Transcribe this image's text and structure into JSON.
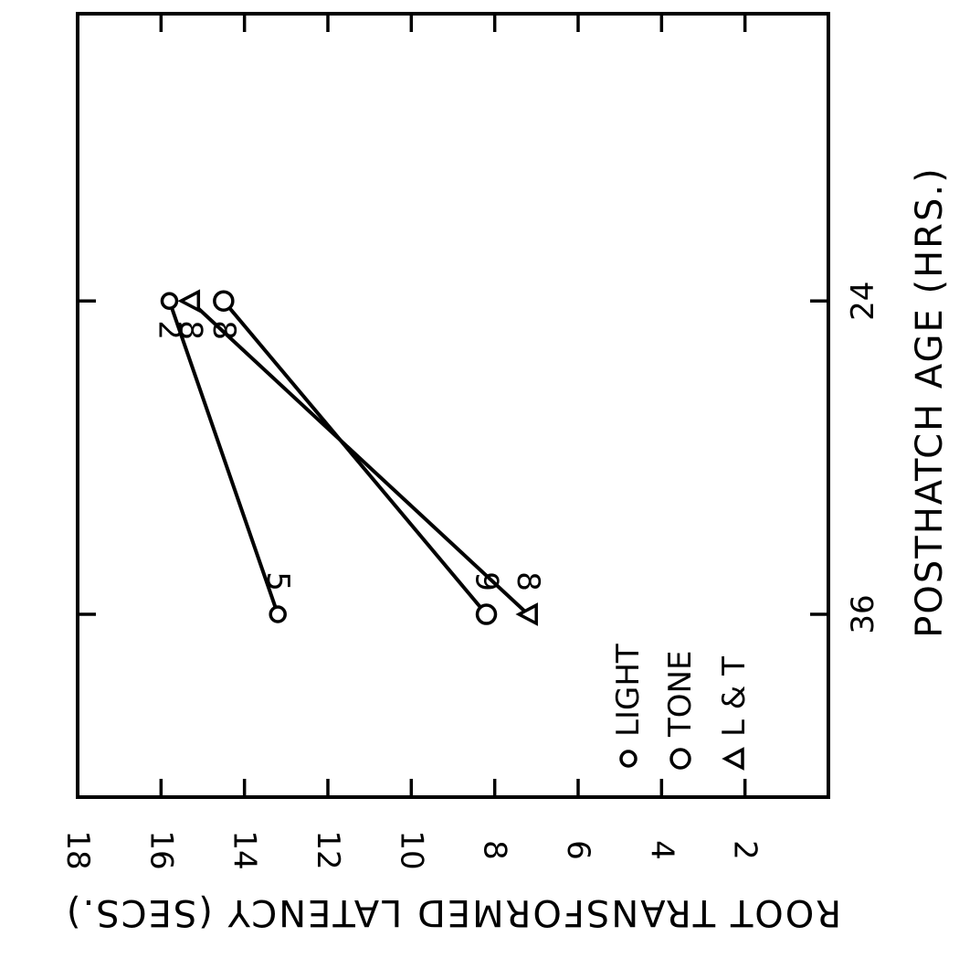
{
  "chart_data": {
    "type": "line",
    "xlabel": "POSTHATCH AGE  (HRS.)",
    "ylabel": "ROOT TRANSFORMED LATENCY (SECS.)",
    "xlim": [
      13,
      43
    ],
    "ylim": [
      0,
      18
    ],
    "x_ticks": [
      24,
      36
    ],
    "y_ticks": [
      2,
      4,
      6,
      8,
      10,
      12,
      14,
      16,
      18
    ],
    "grid": false,
    "legend_placement": "bottom-left",
    "series": [
      {
        "name": "LIGHT",
        "marker": "small-circle",
        "points": [
          {
            "x": 24,
            "y": 15.8,
            "n": "2"
          },
          {
            "x": 36,
            "y": 13.2,
            "n": "5"
          }
        ]
      },
      {
        "name": "TONE",
        "marker": "circle",
        "points": [
          {
            "x": 24,
            "y": 14.5,
            "n": "8"
          },
          {
            "x": 36,
            "y": 8.2,
            "n": "9"
          }
        ]
      },
      {
        "name": "L & T",
        "marker": "triangle",
        "points": [
          {
            "x": 24,
            "y": 15.3,
            "n": "8"
          },
          {
            "x": 36,
            "y": 7.2,
            "n": "8"
          }
        ]
      }
    ]
  }
}
